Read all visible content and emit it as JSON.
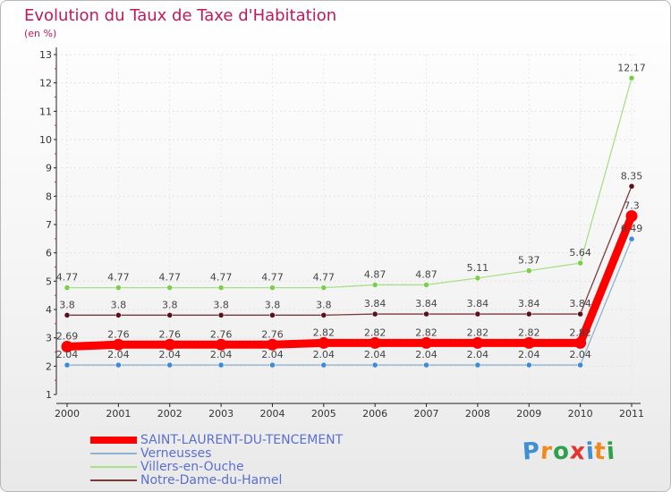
{
  "chart_data": {
    "type": "line",
    "title": "Evolution du Taux de Taxe d'Habitation",
    "ylabel": "(en %)",
    "xlabel": "",
    "categories": [
      "2000",
      "2001",
      "2002",
      "2003",
      "2004",
      "2005",
      "2006",
      "2007",
      "2008",
      "2009",
      "2010",
      "2011"
    ],
    "ylim": [
      1,
      13
    ],
    "yticks": [
      1,
      2,
      3,
      4,
      5,
      6,
      7,
      8,
      9,
      10,
      11,
      12,
      13
    ],
    "series": [
      {
        "name": "SAINT-LAURENT-DU-TENCEMENT",
        "color": "#ff0000",
        "marker": "#ff0000",
        "width": "thick",
        "values": [
          2.69,
          2.76,
          2.76,
          2.76,
          2.76,
          2.82,
          2.82,
          2.82,
          2.82,
          2.82,
          2.82,
          7.3
        ],
        "labels": [
          "2.69",
          "2.76",
          "2.76",
          "2.76",
          "2.76",
          "2.82",
          "2.82",
          "2.82",
          "2.82",
          "2.82",
          "2.82",
          "7.3"
        ]
      },
      {
        "name": "Verneusses",
        "color": "#8fb3cf",
        "marker": "#3d8ad6",
        "width": "thin",
        "values": [
          2.04,
          2.04,
          2.04,
          2.04,
          2.04,
          2.04,
          2.04,
          2.04,
          2.04,
          2.04,
          2.04,
          6.49
        ],
        "labels": [
          "2.04",
          "2.04",
          "2.04",
          "2.04",
          "2.04",
          "2.04",
          "2.04",
          "2.04",
          "2.04",
          "2.04",
          "2.04",
          "6.49"
        ]
      },
      {
        "name": "Villers-en-Ouche",
        "color": "#a8e08a",
        "marker": "#78d048",
        "width": "thin",
        "values": [
          4.77,
          4.77,
          4.77,
          4.77,
          4.77,
          4.77,
          4.87,
          4.87,
          5.11,
          5.37,
          5.64,
          12.17
        ],
        "labels": [
          "4.77",
          "4.77",
          "4.77",
          "4.77",
          "4.77",
          "4.77",
          "4.87",
          "4.87",
          "5.11",
          "5.37",
          "5.64",
          "12.17"
        ]
      },
      {
        "name": "Notre-Dame-du-Hamel",
        "color": "#7a3a3a",
        "marker": "#5a0f1a",
        "width": "thin",
        "values": [
          3.8,
          3.8,
          3.8,
          3.8,
          3.8,
          3.8,
          3.84,
          3.84,
          3.84,
          3.84,
          3.84,
          8.35
        ],
        "labels": [
          "3.8",
          "3.8",
          "3.8",
          "3.8",
          "3.8",
          "3.8",
          "3.84",
          "3.84",
          "3.84",
          "3.84",
          "3.84",
          "8.35"
        ]
      }
    ],
    "legend_position": "bottom-left"
  },
  "logo": {
    "text": "Proxiti",
    "letters": [
      "P",
      "r",
      "o",
      "x",
      "i",
      "t",
      "i"
    ],
    "colors": [
      "#3e8fd4",
      "#f08a1c",
      "#2ea14a",
      "#e3342f",
      "#3e8fd4",
      "#f08a1c",
      "#2ea14a"
    ]
  }
}
